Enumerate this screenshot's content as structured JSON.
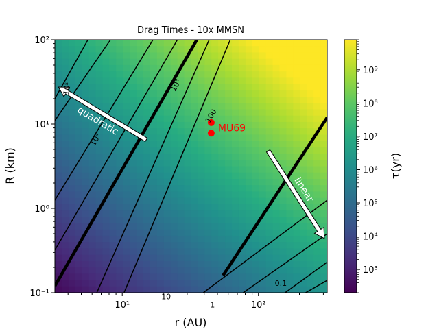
{
  "chart_data": {
    "type": "heatmap",
    "title": "Drag Times - 10x MMSN",
    "xlabel": "r (AU)",
    "ylabel": "R (km)",
    "colorbar_label": "τ(yr)",
    "x_scale": "log",
    "y_scale": "log",
    "xlim": [
      3.2,
      320
    ],
    "ylim": [
      0.1,
      100
    ],
    "x_ticks": [
      {
        "value": 10,
        "label": "10¹"
      },
      {
        "value": 100,
        "label": "10²"
      }
    ],
    "y_ticks": [
      {
        "value": 0.1,
        "label": "10⁻¹"
      },
      {
        "value": 1,
        "label": "10⁰"
      },
      {
        "value": 10,
        "label": "10¹"
      },
      {
        "value": 100,
        "label": "10²"
      }
    ],
    "colormap": "viridis",
    "color_range": [
      200,
      8000000000
    ],
    "colorbar_ticks": [
      {
        "value": 1000,
        "label": "10³"
      },
      {
        "value": 10000,
        "label": "10⁴"
      },
      {
        "value": 100000,
        "label": "10⁵"
      },
      {
        "value": 1000000,
        "label": "10⁶"
      },
      {
        "value": 10000000,
        "label": "10⁷"
      },
      {
        "value": 100000000,
        "label": "10⁸"
      },
      {
        "value": 1000000000,
        "label": "10⁹"
      }
    ],
    "regime_boundaries": [
      {
        "name": "quadratic-boundary",
        "points": [
          [
            3.2,
            0.12
          ],
          [
            35.3,
            100
          ]
        ]
      },
      {
        "name": "linear-boundary",
        "points": [
          [
            55,
            0.16
          ],
          [
            320,
            12
          ]
        ]
      }
    ],
    "contours": [
      {
        "label": "1",
        "points": [
          [
            39.4,
            0.1
          ],
          [
            320,
            1.25
          ]
        ]
      },
      {
        "label": "0.1",
        "points": [
          [
            157,
            0.1
          ],
          [
            320,
            0.23
          ]
        ]
      },
      {
        "label": "10",
        "points": [
          [
            6.5,
            0.1
          ],
          [
            43.5,
            100
          ]
        ]
      },
      {
        "label": "10⁴",
        "points": [
          [
            3.2,
            1.25
          ],
          [
            16.8,
            100
          ]
        ]
      },
      {
        "label": "10³",
        "points": [
          [
            3.2,
            0.32
          ],
          [
            25.4,
            100
          ]
        ]
      },
      {
        "label": "100",
        "points": [
          [
            10.3,
            0.1
          ],
          [
            62.1,
            100
          ]
        ]
      },
      {
        "label": "",
        "points": [
          [
            3.2,
            20
          ],
          [
            5.6,
            100
          ]
        ]
      },
      {
        "label": "10⁵",
        "points": [
          [
            3.2,
            11
          ],
          [
            8.2,
            100
          ]
        ]
      },
      {
        "label": "",
        "points": [
          [
            98.2,
            100
          ],
          [
            166,
            100
          ]
        ]
      },
      {
        "label": "",
        "points": [
          [
            183,
            100
          ],
          [
            286,
            100
          ]
        ]
      },
      {
        "label": "",
        "points": [
          [
            222,
            0.1
          ],
          [
            320,
            0.14
          ]
        ]
      },
      {
        "label": "",
        "points": [
          [
            77.3,
            0.1
          ],
          [
            320,
            0.5
          ]
        ]
      }
    ],
    "contour_label_positions": [
      {
        "label": "1",
        "x": 46,
        "y": 0.072
      },
      {
        "label": "0.1",
        "x": 146,
        "y": 0.13
      },
      {
        "label": "10",
        "x": 21,
        "y": 0.09
      },
      {
        "label": "10⁴",
        "x": 6.6,
        "y": 6.8
      },
      {
        "label": "10³",
        "x": 25.7,
        "y": 30
      },
      {
        "label": "100",
        "x": 46.5,
        "y": 13
      },
      {
        "label": "10⁵",
        "x": 4.1,
        "y": 28
      }
    ],
    "points": [
      {
        "x": 45,
        "y": 10.4
      },
      {
        "x": 45,
        "y": 7.8
      }
    ],
    "point_label": "MU69",
    "point_color": "#ff0000",
    "regime_labels": [
      {
        "text": "quadratic",
        "from": [
          15,
          6.5
        ],
        "to": [
          3.4,
          27.5
        ]
      },
      {
        "text": "linear",
        "from": [
          118,
          4.8
        ],
        "to": [
          305,
          0.44
        ]
      }
    ]
  }
}
